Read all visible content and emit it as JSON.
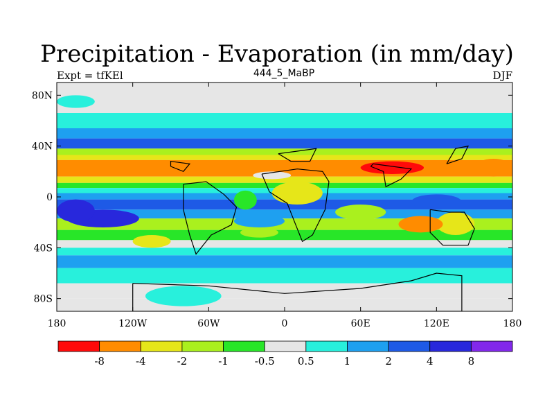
{
  "chart_data": {
    "type": "heatmap",
    "title": "Precipitation - Evaporation (in mm/day)",
    "subtitle_left": "Expt = tfKEl",
    "subtitle_center": "444_5_MaBP",
    "subtitle_right": "DJF",
    "xlim": [
      -180,
      180
    ],
    "ylim": [
      -90,
      90
    ],
    "x_ticks": [
      {
        "value": -180,
        "label": "180"
      },
      {
        "value": -120,
        "label": "120W"
      },
      {
        "value": -60,
        "label": "60W"
      },
      {
        "value": 0,
        "label": "0"
      },
      {
        "value": 60,
        "label": "60E"
      },
      {
        "value": 120,
        "label": "120E"
      },
      {
        "value": 180,
        "label": "180"
      }
    ],
    "y_ticks": [
      {
        "value": 80,
        "label": "80N"
      },
      {
        "value": 40,
        "label": "40N"
      },
      {
        "value": 0,
        "label": "0"
      },
      {
        "value": -40,
        "label": "40S"
      },
      {
        "value": -80,
        "label": "80S"
      }
    ],
    "colorbar": {
      "labels": [
        "-8",
        "-4",
        "-2",
        "-1",
        "-0.5",
        "0.5",
        "1",
        "2",
        "4",
        "8"
      ],
      "colors": [
        "#ff0a0a",
        "#ff8c00",
        "#e6e619",
        "#aaf01e",
        "#28e628",
        "#e6e6e6",
        "#28f0dc",
        "#1ea0f0",
        "#1e5ae6",
        "#2828dc",
        "#8228eb"
      ]
    },
    "bands": [
      {
        "lat_top": 90,
        "lat_bottom": 84,
        "level": 5
      },
      {
        "lat_top": 84,
        "lat_bottom": 66,
        "level": 5
      },
      {
        "lat_top": 66,
        "lat_bottom": 54,
        "level": 6
      },
      {
        "lat_top": 54,
        "lat_bottom": 46,
        "level": 7
      },
      {
        "lat_top": 46,
        "lat_bottom": 38,
        "level": 8
      },
      {
        "lat_top": 38,
        "lat_bottom": 33,
        "level": 3
      },
      {
        "lat_top": 33,
        "lat_bottom": 29,
        "level": 2
      },
      {
        "lat_top": 29,
        "lat_bottom": 16,
        "level": 1
      },
      {
        "lat_top": 16,
        "lat_bottom": 11,
        "level": 2
      },
      {
        "lat_top": 11,
        "lat_bottom": 7,
        "level": 4
      },
      {
        "lat_top": 7,
        "lat_bottom": 3,
        "level": 6
      },
      {
        "lat_top": 3,
        "lat_bottom": -2,
        "level": 7
      },
      {
        "lat_top": -2,
        "lat_bottom": -10,
        "level": 8
      },
      {
        "lat_top": -10,
        "lat_bottom": -17,
        "level": 7
      },
      {
        "lat_top": -17,
        "lat_bottom": -26,
        "level": 3
      },
      {
        "lat_top": -26,
        "lat_bottom": -34,
        "level": 4
      },
      {
        "lat_top": -34,
        "lat_bottom": -40,
        "level": 5
      },
      {
        "lat_top": -40,
        "lat_bottom": -46,
        "level": 6
      },
      {
        "lat_top": -46,
        "lat_bottom": -56,
        "level": 7
      },
      {
        "lat_top": -56,
        "lat_bottom": -68,
        "level": 6
      },
      {
        "lat_top": -68,
        "lat_bottom": -80,
        "level": 5
      },
      {
        "lat_top": -80,
        "lat_bottom": -90,
        "level": 5
      }
    ],
    "patches": [
      {
        "lon": [
          -172,
          -115
        ],
        "lat": [
          -10,
          -24
        ],
        "level": 9
      },
      {
        "lon": [
          -180,
          -150
        ],
        "lat": [
          -2,
          -20
        ],
        "level": 9
      },
      {
        "lon": [
          120,
          150
        ],
        "lat": [
          -12,
          -30
        ],
        "level": 2
      },
      {
        "lon": [
          90,
          125
        ],
        "lat": [
          -15,
          -28
        ],
        "level": 1
      },
      {
        "lon": [
          -40,
          0
        ],
        "lat": [
          -14,
          -24
        ],
        "level": 7
      },
      {
        "lon": [
          -35,
          -5
        ],
        "lat": [
          -24,
          -32
        ],
        "level": 3
      },
      {
        "lon": [
          -40,
          -22
        ],
        "lat": [
          5,
          -10
        ],
        "level": 4
      },
      {
        "lon": [
          -25,
          5
        ],
        "lat": [
          20,
          14
        ],
        "level": 5
      },
      {
        "lon": [
          -10,
          30
        ],
        "lat": [
          12,
          -6
        ],
        "level": 2
      },
      {
        "lon": [
          40,
          80
        ],
        "lat": [
          -6,
          -18
        ],
        "level": 3
      },
      {
        "lon": [
          100,
          140
        ],
        "lat": [
          2,
          -10
        ],
        "level": 8
      },
      {
        "lon": [
          -120,
          -90
        ],
        "lat": [
          -30,
          -40
        ],
        "level": 2
      },
      {
        "lon": [
          60,
          110
        ],
        "lat": [
          28,
          18
        ],
        "level": 0
      },
      {
        "lon": [
          150,
          180
        ],
        "lat": [
          30,
          16
        ],
        "level": 1
      },
      {
        "lon": [
          145,
          180
        ],
        "lat": [
          88,
          66
        ],
        "level": 5
      },
      {
        "lon": [
          -180,
          -150
        ],
        "lat": [
          80,
          70
        ],
        "level": 6
      },
      {
        "lon": [
          -110,
          -50
        ],
        "lat": [
          -70,
          -86
        ],
        "level": 6
      }
    ],
    "land_outlines": [
      {
        "name": "africa",
        "points": [
          [
            -18,
            18
          ],
          [
            10,
            22
          ],
          [
            30,
            20
          ],
          [
            35,
            12
          ],
          [
            32,
            -10
          ],
          [
            22,
            -30
          ],
          [
            14,
            -35
          ],
          [
            8,
            -20
          ],
          [
            2,
            -5
          ],
          [
            -12,
            4
          ],
          [
            -18,
            18
          ]
        ]
      },
      {
        "name": "south-america",
        "points": [
          [
            -80,
            10
          ],
          [
            -62,
            12
          ],
          [
            -48,
            2
          ],
          [
            -38,
            -8
          ],
          [
            -42,
            -22
          ],
          [
            -58,
            -30
          ],
          [
            -70,
            -45
          ],
          [
            -75,
            -30
          ],
          [
            -80,
            -10
          ],
          [
            -80,
            10
          ]
        ]
      },
      {
        "name": "india-se-asia",
        "points": [
          [
            68,
            24
          ],
          [
            78,
            20
          ],
          [
            80,
            8
          ],
          [
            92,
            14
          ],
          [
            100,
            22
          ],
          [
            70,
            26
          ],
          [
            68,
            24
          ]
        ]
      },
      {
        "name": "australia",
        "points": [
          [
            115,
            -10
          ],
          [
            130,
            -12
          ],
          [
            142,
            -12
          ],
          [
            150,
            -25
          ],
          [
            145,
            -38
          ],
          [
            125,
            -38
          ],
          [
            115,
            -28
          ],
          [
            115,
            -10
          ]
        ]
      },
      {
        "name": "asia-east",
        "points": [
          [
            128,
            26
          ],
          [
            140,
            30
          ],
          [
            145,
            40
          ],
          [
            135,
            38
          ],
          [
            128,
            26
          ]
        ]
      },
      {
        "name": "antarctica",
        "points": [
          [
            -120,
            -68
          ],
          [
            -60,
            -70
          ],
          [
            0,
            -76
          ],
          [
            60,
            -72
          ],
          [
            100,
            -66
          ],
          [
            120,
            -60
          ],
          [
            140,
            -62
          ],
          [
            140,
            -90
          ],
          [
            -120,
            -90
          ],
          [
            -120,
            -68
          ]
        ]
      },
      {
        "name": "north-america-south",
        "points": [
          [
            -90,
            24
          ],
          [
            -80,
            20
          ],
          [
            -75,
            26
          ],
          [
            -90,
            28
          ],
          [
            -90,
            24
          ]
        ]
      },
      {
        "name": "europe",
        "points": [
          [
            -5,
            34
          ],
          [
            10,
            36
          ],
          [
            25,
            38
          ],
          [
            20,
            28
          ],
          [
            5,
            28
          ],
          [
            -5,
            34
          ]
        ]
      }
    ]
  }
}
